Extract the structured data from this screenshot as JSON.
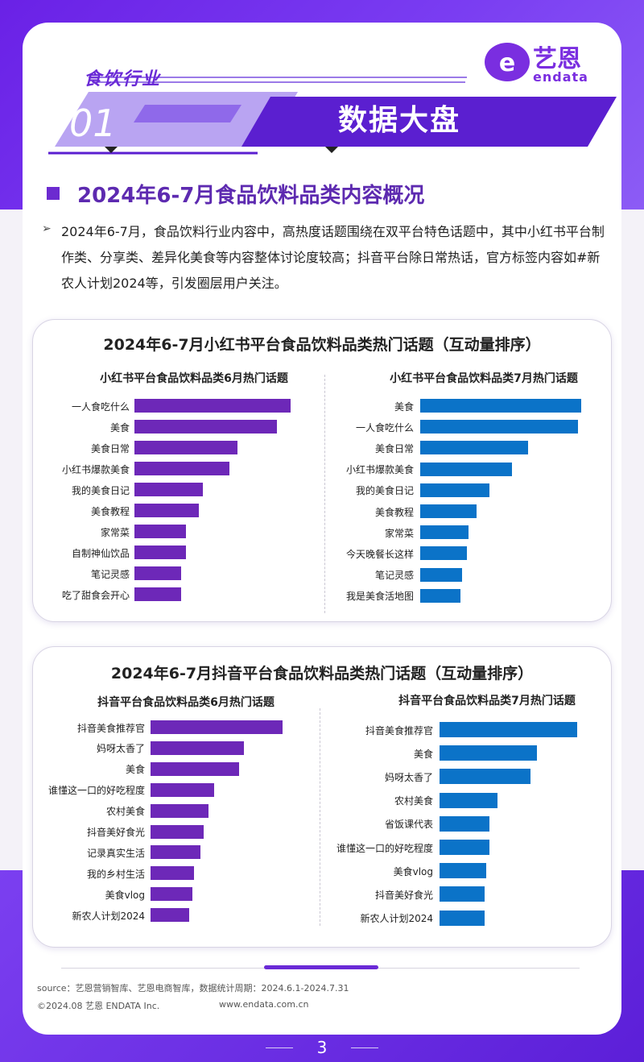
{
  "header": {
    "industry": "食饮行业",
    "number": "01",
    "banner_title": "数据大盘",
    "logo": {
      "cn": "艺恩",
      "en": "endata"
    }
  },
  "section": {
    "title": "2024年6-7月食品饮料品类内容概况",
    "paragraph": "2024年6-7月，食品饮料行业内容中，高热度话题围绕在双平台特色话题中，其中小红书平台制作类、分享类、差异化美食等内容整体讨论度较高；抖音平台除日常热话，官方标签内容如#新农人计划2024等，引发圈层用户关注。"
  },
  "panels": [
    {
      "title": "2024年6-7月小红书平台食品饮料品类热门话题（互动量排序）",
      "left": {
        "subtitle": "小红书平台食品饮料品类6月热门话题",
        "items": [
          "一人食吃什么",
          "美食",
          "美食日常",
          "小红书爆款美食",
          "我的美食日记",
          "美食教程",
          "家常菜",
          "自制神仙饮品",
          "笔记灵感",
          "吃了甜食会开心"
        ]
      },
      "right": {
        "subtitle": "小红书平台食品饮料品类7月热门话题",
        "items": [
          "美食",
          "一人食吃什么",
          "美食日常",
          "小红书爆款美食",
          "我的美食日记",
          "美食教程",
          "家常菜",
          "今天晚餐长这样",
          "笔记灵感",
          "我是美食活地图"
        ]
      }
    },
    {
      "title": "2024年6-7月抖音平台食品饮料品类热门话题（互动量排序）",
      "left": {
        "subtitle": "抖音平台食品饮料品类6月热门话题",
        "items": [
          "抖音美食推荐官",
          "妈呀太香了",
          "美食",
          "谁懂这一口的好吃程度",
          "农村美食",
          "抖音美好食光",
          "记录真实生活",
          "我的乡村生活",
          "美食vlog",
          "新农人计划2024"
        ]
      },
      "right": {
        "subtitle": "抖音平台食品饮料品类7月热门话题",
        "items": [
          "抖音美食推荐官",
          "美食",
          "妈呀太香了",
          "农村美食",
          "省饭课代表",
          "谁懂这一口的好吃程度",
          "美食vlog",
          "抖音美好食光",
          "新农人计划2024"
        ]
      }
    }
  ],
  "chart_data": [
    {
      "type": "bar",
      "categories": [
        "一人食吃什么",
        "美食",
        "美食日常",
        "小红书爆款美食",
        "我的美食日记",
        "美食教程",
        "家常菜",
        "自制神仙饮品",
        "笔记灵感",
        "吃了甜食会开心"
      ],
      "values": [
        100,
        91,
        66,
        61,
        44,
        41,
        33,
        33,
        30,
        30
      ],
      "color": "#6d28b8"
    },
    {
      "type": "bar",
      "categories": [
        "美食",
        "一人食吃什么",
        "美食日常",
        "小红书爆款美食",
        "我的美食日记",
        "美食教程",
        "家常菜",
        "今天晚餐长这样",
        "笔记灵感",
        "我是美食活地图"
      ],
      "values": [
        100,
        98,
        67,
        57,
        43,
        35,
        30,
        29,
        26,
        25
      ],
      "color": "#0b73c8"
    },
    {
      "type": "bar",
      "categories": [
        "抖音美食推荐官",
        "妈呀太香了",
        "美食",
        "谁懂这一口的好吃程度",
        "农村美食",
        "抖音美好食光",
        "记录真实生活",
        "我的乡村生活",
        "美食vlog",
        "新农人计划2024"
      ],
      "values": [
        100,
        71,
        67,
        48,
        44,
        40,
        38,
        33,
        32,
        29
      ],
      "color": "#6d28b8"
    },
    {
      "type": "bar",
      "categories": [
        "抖音美食推荐官",
        "美食",
        "妈呀太香了",
        "农村美食",
        "省饭课代表",
        "谁懂这一口的好吃程度",
        "美食vlog",
        "抖音美好食光",
        "新农人计划2024"
      ],
      "values": [
        100,
        71,
        66,
        42,
        36,
        36,
        34,
        33,
        33
      ],
      "color": "#0b73c8"
    }
  ],
  "footer": {
    "source": "source：艺恩营销智库、艺恩电商智库，数据统计周期：2024.6.1-2024.7.31",
    "copyright": "©2024.08 艺恩 ENDATA Inc.",
    "site": "www.endata.com.cn",
    "page": "3"
  }
}
